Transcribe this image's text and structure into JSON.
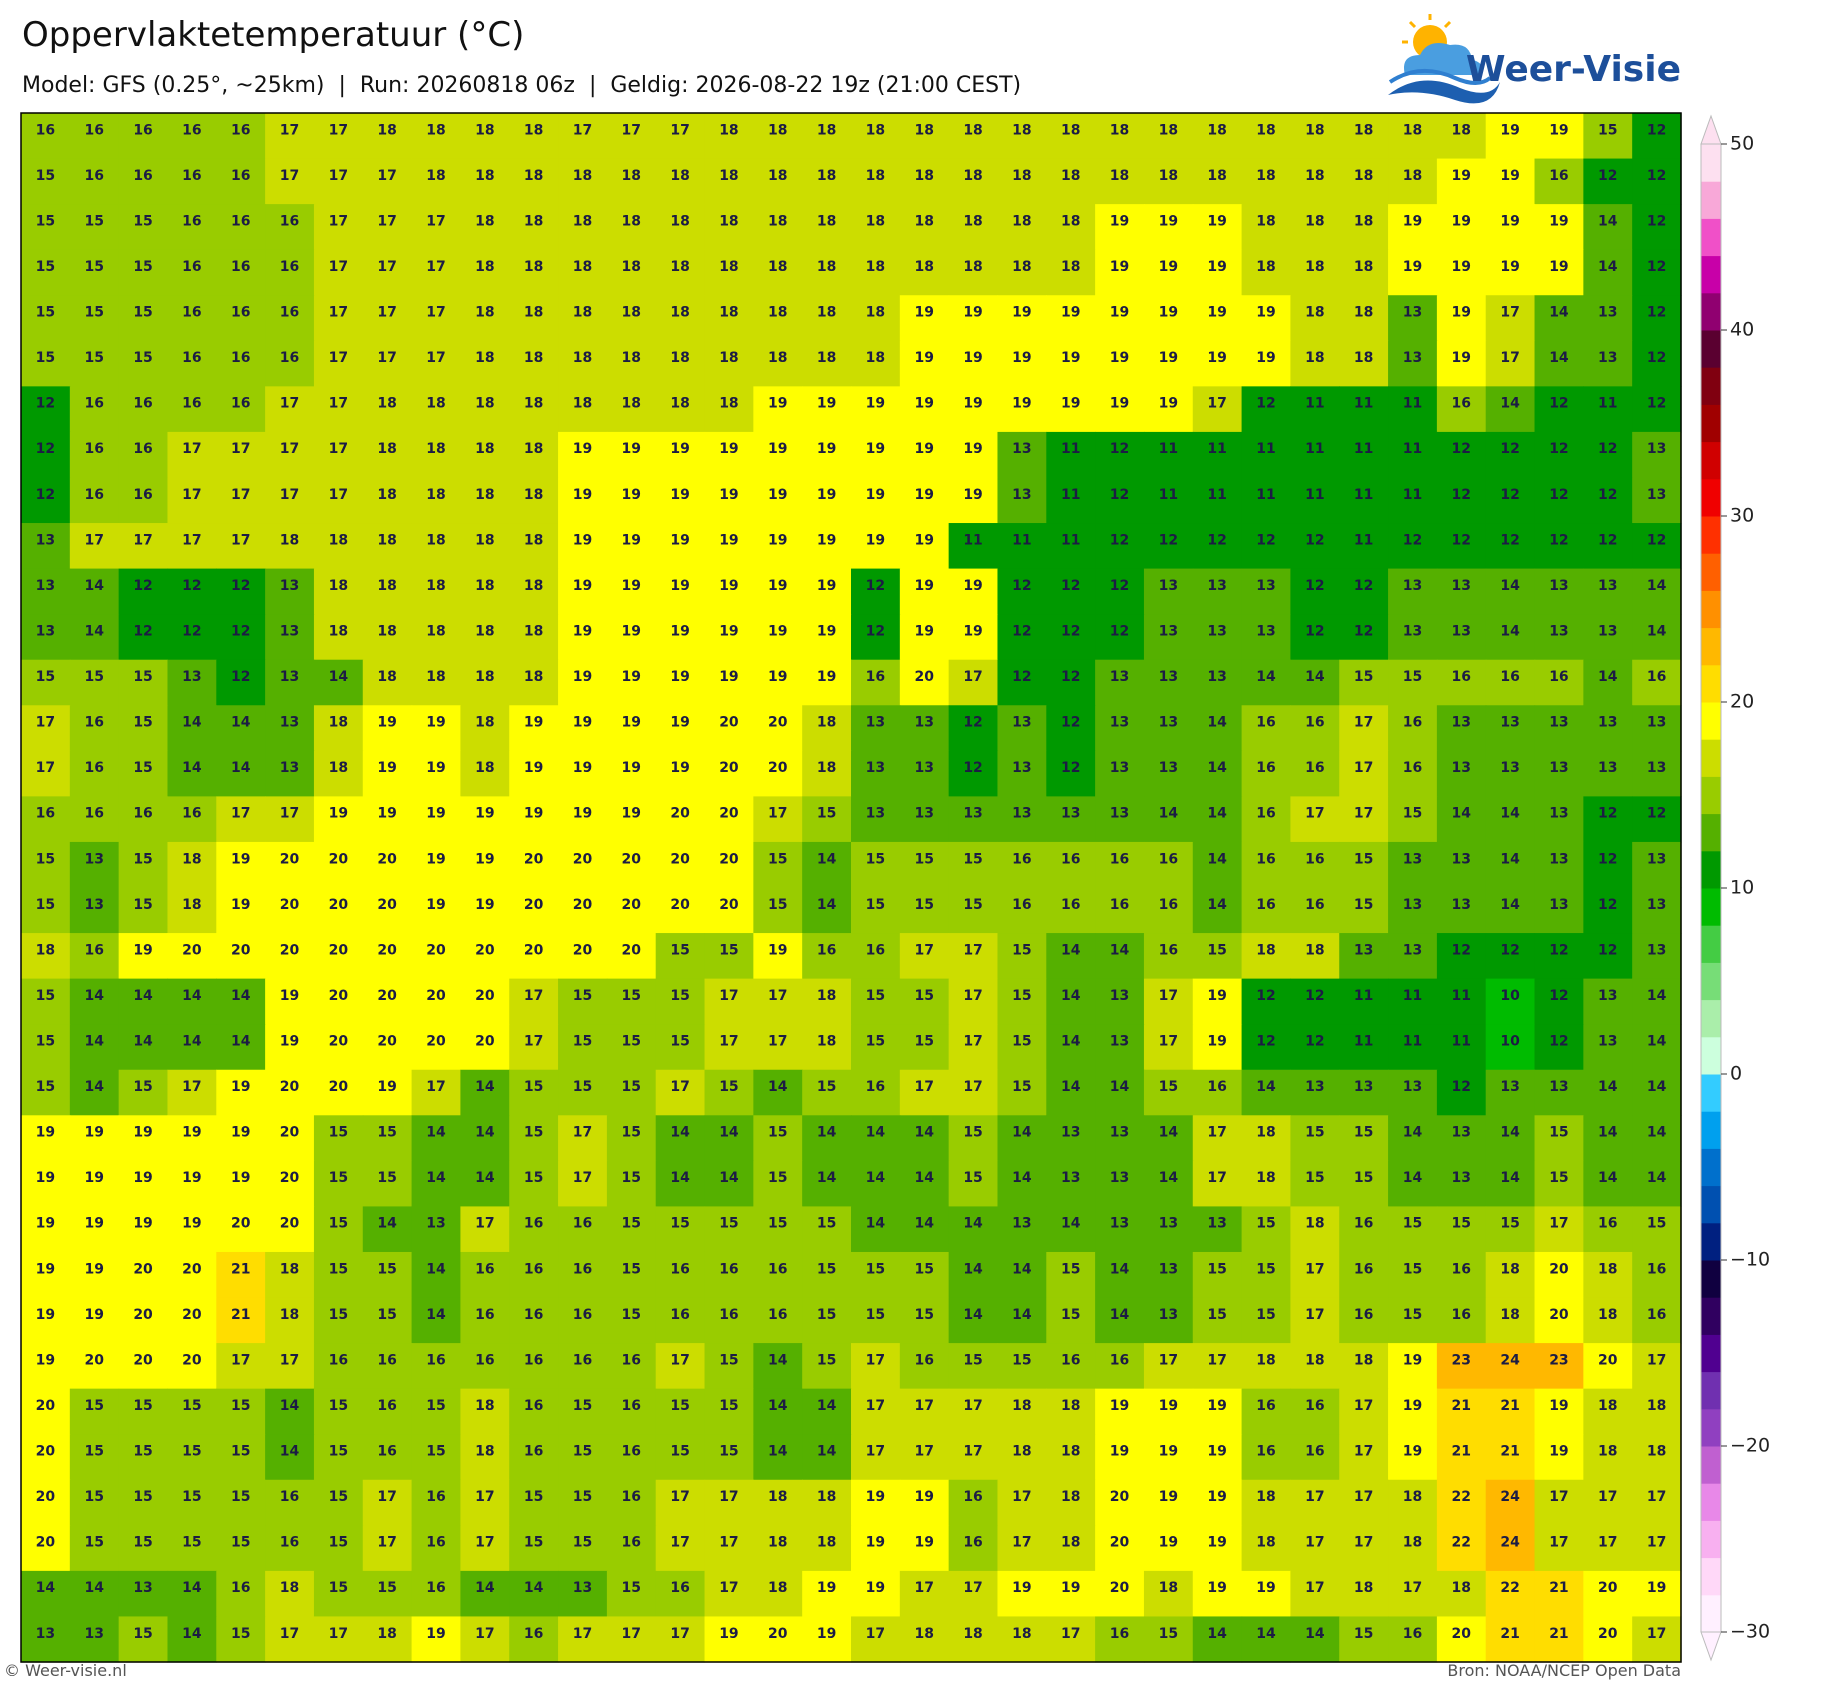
{
  "header": {
    "title": "Oppervlaktetemperatuur (°C)",
    "subtitle": "Model: GFS (0.25°, ~25km)  |  Run: 20260818 06z  |  Geldig: 2026-08-22 19z (21:00 CEST)",
    "logo": "Weer-Visie"
  },
  "map": {
    "rows": [
      [
        16,
        16,
        16,
        16,
        16,
        17,
        17,
        18,
        18,
        18,
        18,
        17,
        17,
        17,
        18,
        18,
        18,
        18,
        18,
        18,
        18,
        18,
        18,
        18,
        18,
        18,
        18,
        18,
        18,
        18,
        19,
        19,
        15,
        12
      ],
      [
        15,
        16,
        16,
        16,
        16,
        17,
        17,
        17,
        18,
        18,
        18,
        18,
        18,
        18,
        18,
        18,
        18,
        18,
        18,
        18,
        18,
        18,
        18,
        18,
        18,
        18,
        18,
        18,
        18,
        19,
        19,
        16,
        12,
        12
      ],
      [
        15,
        15,
        15,
        16,
        16,
        16,
        17,
        17,
        17,
        18,
        18,
        18,
        18,
        18,
        18,
        18,
        18,
        18,
        18,
        18,
        18,
        18,
        19,
        19,
        19,
        18,
        18,
        18,
        19,
        19,
        19,
        19,
        14,
        12
      ],
      [
        15,
        15,
        15,
        16,
        16,
        16,
        17,
        17,
        17,
        18,
        18,
        18,
        18,
        18,
        18,
        18,
        18,
        18,
        18,
        18,
        18,
        18,
        19,
        19,
        19,
        18,
        18,
        18,
        19,
        19,
        19,
        19,
        14,
        12
      ],
      [
        15,
        15,
        15,
        16,
        16,
        16,
        17,
        17,
        17,
        18,
        18,
        18,
        18,
        18,
        18,
        18,
        18,
        18,
        19,
        19,
        19,
        19,
        19,
        19,
        19,
        19,
        18,
        18,
        13,
        19,
        17,
        14,
        13,
        12
      ],
      [
        15,
        15,
        15,
        16,
        16,
        16,
        17,
        17,
        17,
        18,
        18,
        18,
        18,
        18,
        18,
        18,
        18,
        18,
        19,
        19,
        19,
        19,
        19,
        19,
        19,
        19,
        18,
        18,
        13,
        19,
        17,
        14,
        13,
        12
      ],
      [
        12,
        16,
        16,
        16,
        16,
        17,
        17,
        18,
        18,
        18,
        18,
        18,
        18,
        18,
        18,
        19,
        19,
        19,
        19,
        19,
        19,
        19,
        19,
        19,
        17,
        12,
        11,
        11,
        11,
        16,
        14,
        12,
        11,
        12
      ],
      [
        12,
        16,
        16,
        17,
        17,
        17,
        17,
        18,
        18,
        18,
        18,
        19,
        19,
        19,
        19,
        19,
        19,
        19,
        19,
        19,
        13,
        11,
        12,
        11,
        11,
        11,
        11,
        11,
        11,
        12,
        12,
        12,
        12,
        13
      ],
      [
        12,
        16,
        16,
        17,
        17,
        17,
        17,
        18,
        18,
        18,
        18,
        19,
        19,
        19,
        19,
        19,
        19,
        19,
        19,
        19,
        13,
        11,
        12,
        11,
        11,
        11,
        11,
        11,
        11,
        12,
        12,
        12,
        12,
        13
      ],
      [
        13,
        17,
        17,
        17,
        17,
        18,
        18,
        18,
        18,
        18,
        18,
        19,
        19,
        19,
        19,
        19,
        19,
        19,
        19,
        11,
        11,
        11,
        12,
        12,
        12,
        12,
        12,
        11,
        12,
        12,
        12,
        12,
        12,
        12
      ],
      [
        13,
        14,
        12,
        12,
        12,
        13,
        18,
        18,
        18,
        18,
        18,
        19,
        19,
        19,
        19,
        19,
        19,
        12,
        19,
        19,
        12,
        12,
        12,
        13,
        13,
        13,
        12,
        12,
        13,
        13,
        14,
        13,
        13,
        14
      ],
      [
        13,
        14,
        12,
        12,
        12,
        13,
        18,
        18,
        18,
        18,
        18,
        19,
        19,
        19,
        19,
        19,
        19,
        12,
        19,
        19,
        12,
        12,
        12,
        13,
        13,
        13,
        12,
        12,
        13,
        13,
        14,
        13,
        13,
        14
      ],
      [
        15,
        15,
        15,
        13,
        12,
        13,
        14,
        18,
        18,
        18,
        18,
        19,
        19,
        19,
        19,
        19,
        19,
        16,
        20,
        17,
        12,
        12,
        13,
        13,
        13,
        14,
        14,
        15,
        15,
        16,
        16,
        16,
        14,
        16
      ],
      [
        17,
        16,
        15,
        14,
        14,
        13,
        18,
        19,
        19,
        18,
        19,
        19,
        19,
        19,
        20,
        20,
        18,
        13,
        13,
        12,
        13,
        12,
        13,
        13,
        14,
        16,
        16,
        17,
        16,
        13,
        13,
        13,
        13,
        13
      ],
      [
        17,
        16,
        15,
        14,
        14,
        13,
        18,
        19,
        19,
        18,
        19,
        19,
        19,
        19,
        20,
        20,
        18,
        13,
        13,
        12,
        13,
        12,
        13,
        13,
        14,
        16,
        16,
        17,
        16,
        13,
        13,
        13,
        13,
        13
      ],
      [
        16,
        16,
        16,
        16,
        17,
        17,
        19,
        19,
        19,
        19,
        19,
        19,
        19,
        20,
        20,
        17,
        15,
        13,
        13,
        13,
        13,
        13,
        13,
        14,
        14,
        16,
        17,
        17,
        15,
        14,
        14,
        13,
        12,
        12
      ],
      [
        15,
        13,
        15,
        18,
        19,
        20,
        20,
        20,
        19,
        19,
        20,
        20,
        20,
        20,
        20,
        15,
        14,
        15,
        15,
        15,
        16,
        16,
        16,
        16,
        14,
        16,
        16,
        15,
        13,
        13,
        14,
        13,
        12,
        13
      ],
      [
        15,
        13,
        15,
        18,
        19,
        20,
        20,
        20,
        19,
        19,
        20,
        20,
        20,
        20,
        20,
        15,
        14,
        15,
        15,
        15,
        16,
        16,
        16,
        16,
        14,
        16,
        16,
        15,
        13,
        13,
        14,
        13,
        12,
        13
      ],
      [
        18,
        16,
        19,
        20,
        20,
        20,
        20,
        20,
        20,
        20,
        20,
        20,
        20,
        15,
        15,
        19,
        16,
        16,
        17,
        17,
        15,
        14,
        14,
        16,
        15,
        18,
        18,
        13,
        13,
        12,
        12,
        12,
        12,
        13
      ],
      [
        15,
        14,
        14,
        14,
        14,
        19,
        20,
        20,
        20,
        20,
        17,
        15,
        15,
        15,
        17,
        17,
        18,
        15,
        15,
        17,
        15,
        14,
        13,
        17,
        19,
        12,
        12,
        11,
        11,
        11,
        10,
        12,
        13,
        14
      ],
      [
        15,
        14,
        14,
        14,
        14,
        19,
        20,
        20,
        20,
        20,
        17,
        15,
        15,
        15,
        17,
        17,
        18,
        15,
        15,
        17,
        15,
        14,
        13,
        17,
        19,
        12,
        12,
        11,
        11,
        11,
        10,
        12,
        13,
        14
      ],
      [
        15,
        14,
        15,
        17,
        19,
        20,
        20,
        19,
        17,
        14,
        15,
        15,
        15,
        17,
        15,
        14,
        15,
        16,
        17,
        17,
        15,
        14,
        14,
        15,
        16,
        14,
        13,
        13,
        13,
        12,
        13,
        13,
        14,
        14
      ],
      [
        19,
        19,
        19,
        19,
        19,
        20,
        15,
        15,
        14,
        14,
        15,
        17,
        15,
        14,
        14,
        15,
        14,
        14,
        14,
        15,
        14,
        13,
        13,
        14,
        17,
        18,
        15,
        15,
        14,
        13,
        14,
        15,
        14,
        14
      ],
      [
        19,
        19,
        19,
        19,
        19,
        20,
        15,
        15,
        14,
        14,
        15,
        17,
        15,
        14,
        14,
        15,
        14,
        14,
        14,
        15,
        14,
        13,
        13,
        14,
        17,
        18,
        15,
        15,
        14,
        13,
        14,
        15,
        14,
        14
      ],
      [
        19,
        19,
        19,
        19,
        20,
        20,
        15,
        14,
        13,
        17,
        16,
        16,
        15,
        15,
        15,
        15,
        15,
        14,
        14,
        14,
        13,
        14,
        13,
        13,
        13,
        15,
        18,
        16,
        15,
        15,
        15,
        17,
        16,
        15
      ],
      [
        19,
        19,
        20,
        20,
        21,
        18,
        15,
        15,
        14,
        16,
        16,
        16,
        15,
        16,
        16,
        16,
        15,
        15,
        15,
        14,
        14,
        15,
        14,
        13,
        15,
        15,
        17,
        16,
        15,
        16,
        18,
        20,
        18,
        16
      ],
      [
        19,
        19,
        20,
        20,
        21,
        18,
        15,
        15,
        14,
        16,
        16,
        16,
        15,
        16,
        16,
        16,
        15,
        15,
        15,
        14,
        14,
        15,
        14,
        13,
        15,
        15,
        17,
        16,
        15,
        16,
        18,
        20,
        18,
        16
      ],
      [
        19,
        20,
        20,
        20,
        17,
        17,
        16,
        16,
        16,
        16,
        16,
        16,
        16,
        17,
        15,
        14,
        15,
        17,
        16,
        15,
        15,
        16,
        16,
        17,
        17,
        18,
        18,
        18,
        19,
        23,
        24,
        23,
        20,
        17
      ],
      [
        20,
        15,
        15,
        15,
        15,
        14,
        15,
        16,
        15,
        18,
        16,
        15,
        16,
        15,
        15,
        14,
        14,
        17,
        17,
        17,
        18,
        18,
        19,
        19,
        19,
        16,
        16,
        17,
        19,
        21,
        21,
        19,
        18,
        18
      ],
      [
        20,
        15,
        15,
        15,
        15,
        14,
        15,
        16,
        15,
        18,
        16,
        15,
        16,
        15,
        15,
        14,
        14,
        17,
        17,
        17,
        18,
        18,
        19,
        19,
        19,
        16,
        16,
        17,
        19,
        21,
        21,
        19,
        18,
        18
      ],
      [
        20,
        15,
        15,
        15,
        15,
        16,
        15,
        17,
        16,
        17,
        15,
        15,
        16,
        17,
        17,
        18,
        18,
        19,
        19,
        16,
        17,
        18,
        20,
        19,
        19,
        18,
        17,
        17,
        18,
        22,
        24,
        17,
        17,
        17
      ],
      [
        20,
        15,
        15,
        15,
        15,
        16,
        15,
        17,
        16,
        17,
        15,
        15,
        16,
        17,
        17,
        18,
        18,
        19,
        19,
        16,
        17,
        18,
        20,
        19,
        19,
        18,
        17,
        17,
        18,
        22,
        24,
        17,
        17,
        17
      ],
      [
        14,
        14,
        13,
        14,
        16,
        18,
        15,
        15,
        16,
        14,
        14,
        13,
        15,
        16,
        17,
        18,
        19,
        19,
        17,
        17,
        19,
        19,
        20,
        18,
        19,
        19,
        17,
        18,
        17,
        18,
        22,
        21,
        20,
        19
      ],
      [
        13,
        13,
        15,
        14,
        15,
        17,
        17,
        18,
        19,
        17,
        16,
        17,
        17,
        17,
        19,
        20,
        19,
        17,
        18,
        18,
        18,
        17,
        16,
        15,
        14,
        14,
        14,
        15,
        16,
        20,
        21,
        21,
        20,
        17
      ]
    ]
  },
  "colorbar": {
    "ylim": [
      -30,
      50
    ],
    "ticks": [
      50,
      40,
      30,
      20,
      10,
      0,
      {
        "value": -10,
        "label": "−10"
      },
      {
        "value": -20,
        "label": "−20"
      },
      {
        "value": -30,
        "label": "−30"
      }
    ],
    "colors": [
      "#fff0ff",
      "#ffd8f8",
      "#f8b0f0",
      "#e888e8",
      "#c060d0",
      "#9040c0",
      "#7030b0",
      "#500090",
      "#300060",
      "#100040",
      "#002080",
      "#0050b0",
      "#0070cc",
      "#00a0ee",
      "#33ccff",
      "#ccffdd",
      "#aaeeaa",
      "#77dd77",
      "#44cc44",
      "#00bb00",
      "#009900",
      "#55b000",
      "#99cc00",
      "#ccdd00",
      "#ffff00",
      "#ffdd00",
      "#ffb800",
      "#ff9000",
      "#ff6000",
      "#ff3000",
      "#f00000",
      "#d00000",
      "#a00000",
      "#800010",
      "#5a0030",
      "#900070",
      "#c800a8",
      "#f050c8",
      "#f8a8d8",
      "#fde0f0"
    ]
  },
  "footer": {
    "left": "© Weer-visie.nl",
    "right": "Bron: NOAA/NCEP Open Data"
  }
}
